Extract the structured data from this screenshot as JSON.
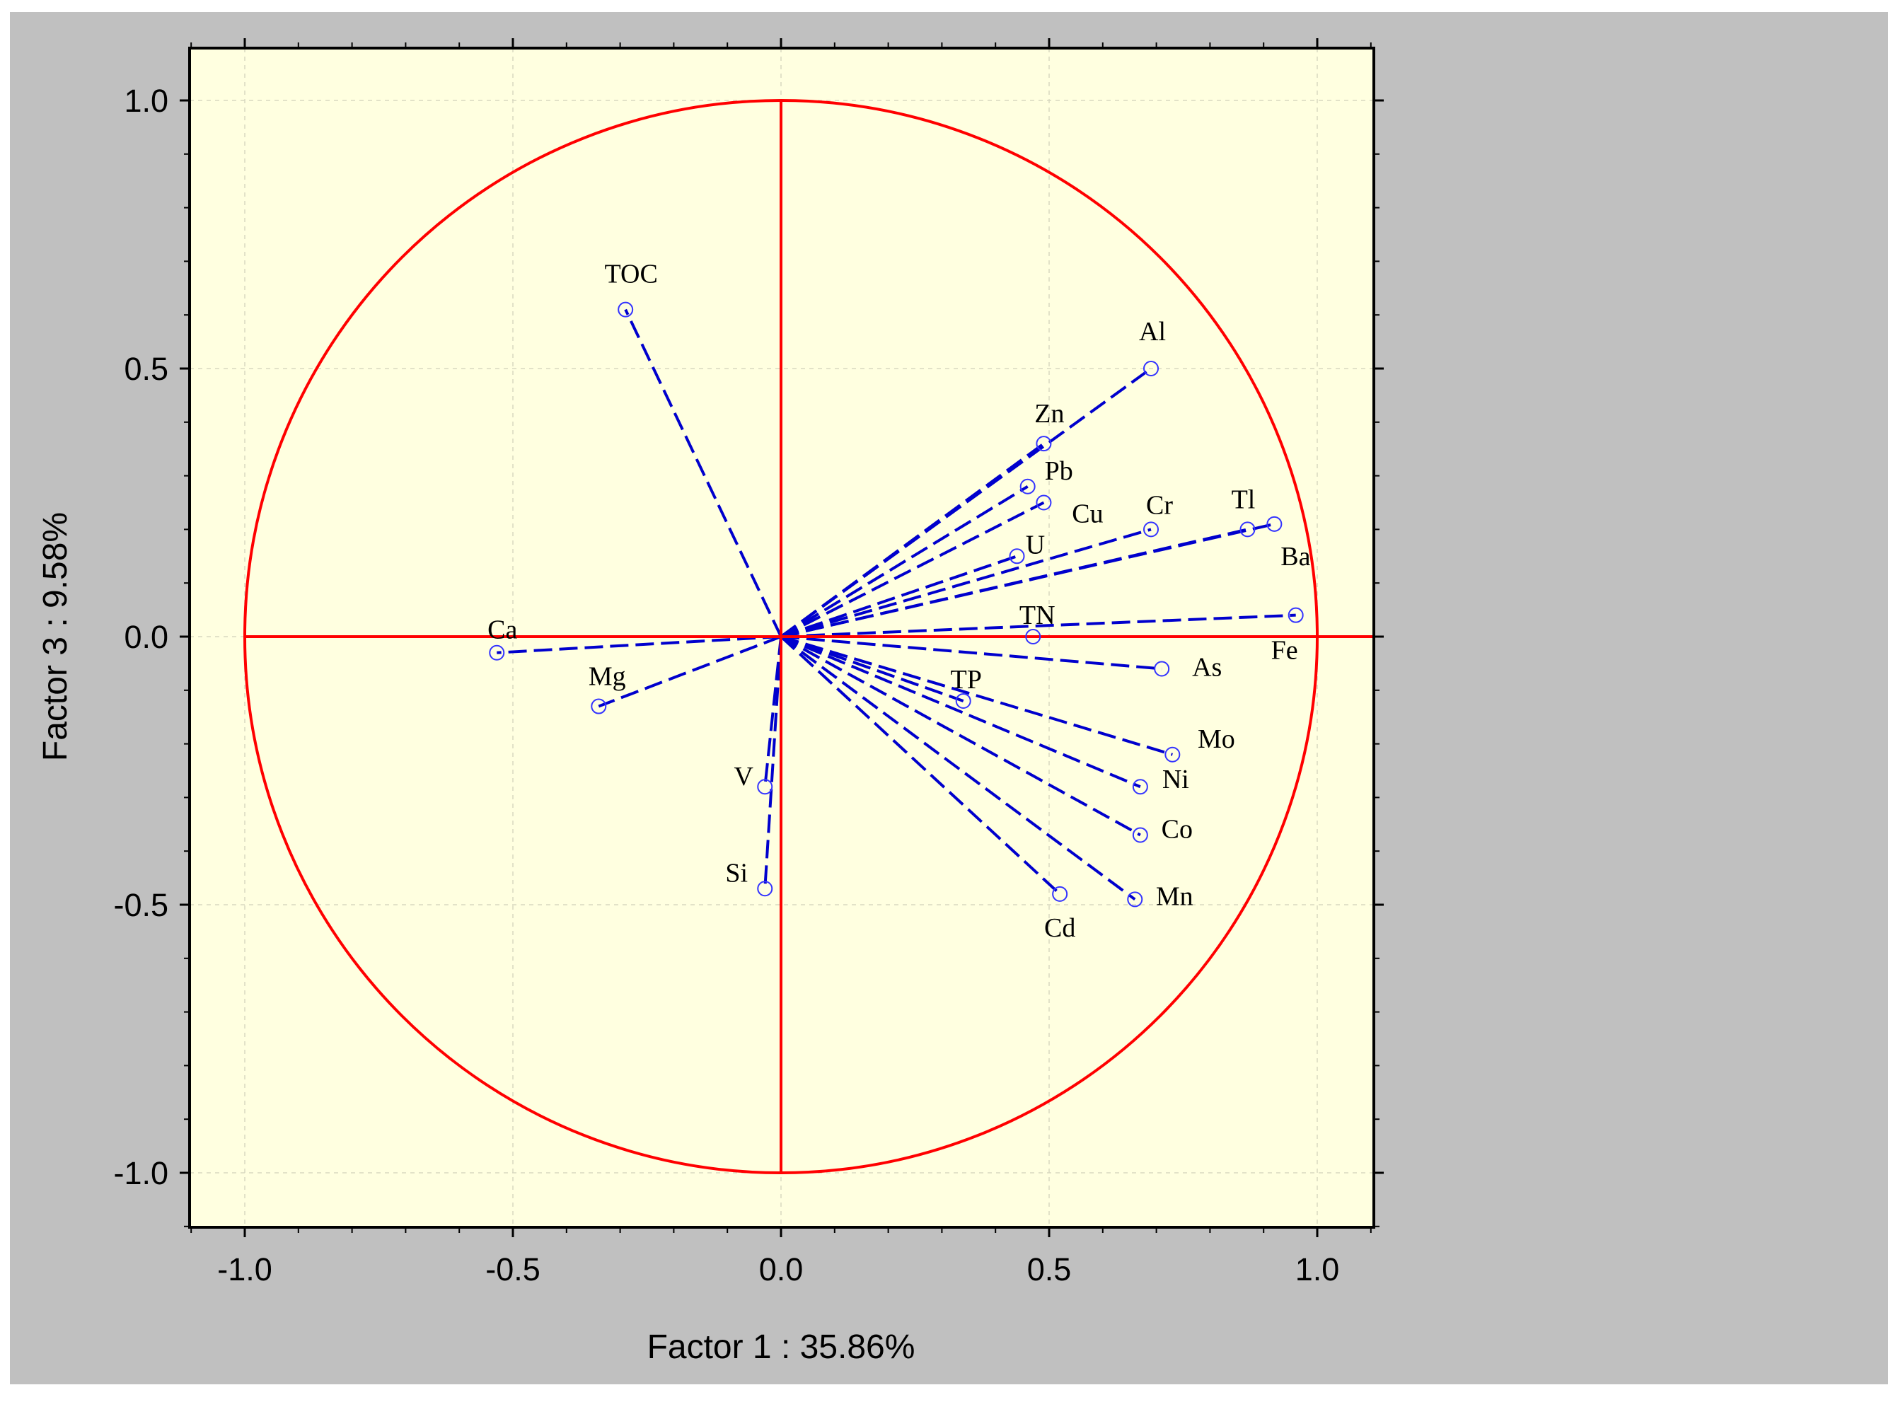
{
  "chart_data": {
    "type": "scatter",
    "subtype": "pca-correlation-circle",
    "title": "",
    "xlabel": "Factor 1 : 35.86%",
    "ylabel": "Factor 3 :  9.58%",
    "xlim": [
      -1.1,
      1.1
    ],
    "ylim": [
      -1.1,
      1.1
    ],
    "xticks": [
      -1.0,
      -0.5,
      0.0,
      0.5,
      1.0
    ],
    "yticks": [
      -1.0,
      -0.5,
      0.0,
      0.5,
      1.0
    ],
    "xtick_labels": [
      "-1.0",
      "-0.5",
      "0.0",
      "0.5",
      "1.0"
    ],
    "ytick_labels": [
      "-1.0",
      "-0.5",
      "0.0",
      "0.5",
      "1.0"
    ],
    "grid": true,
    "unit_circle": true,
    "points": [
      {
        "name": "TOC",
        "x": -0.29,
        "y": 0.61
      },
      {
        "name": "Al",
        "x": 0.69,
        "y": 0.5
      },
      {
        "name": "Zn",
        "x": 0.49,
        "y": 0.36
      },
      {
        "name": "Pb",
        "x": 0.46,
        "y": 0.28
      },
      {
        "name": "Cu",
        "x": 0.49,
        "y": 0.25
      },
      {
        "name": "U",
        "x": 0.44,
        "y": 0.15
      },
      {
        "name": "Cr",
        "x": 0.69,
        "y": 0.2
      },
      {
        "name": "Tl",
        "x": 0.87,
        "y": 0.2
      },
      {
        "name": "Ba",
        "x": 0.92,
        "y": 0.21
      },
      {
        "name": "Fe",
        "x": 0.96,
        "y": 0.04
      },
      {
        "name": "TN",
        "x": 0.47,
        "y": 0.0
      },
      {
        "name": "As",
        "x": 0.71,
        "y": -0.06
      },
      {
        "name": "TP",
        "x": 0.34,
        "y": -0.12
      },
      {
        "name": "Mo",
        "x": 0.73,
        "y": -0.22
      },
      {
        "name": "Ni",
        "x": 0.67,
        "y": -0.28
      },
      {
        "name": "Co",
        "x": 0.67,
        "y": -0.37
      },
      {
        "name": "Mn",
        "x": 0.66,
        "y": -0.49
      },
      {
        "name": "Cd",
        "x": 0.52,
        "y": -0.48
      },
      {
        "name": "Ca",
        "x": -0.53,
        "y": -0.03
      },
      {
        "name": "Mg",
        "x": -0.34,
        "y": -0.13
      },
      {
        "name": "V",
        "x": -0.03,
        "y": -0.28
      },
      {
        "name": "Si",
        "x": -0.03,
        "y": -0.47
      }
    ],
    "colors": {
      "frame": "#c0c0c0",
      "plot_bg": "#ffffe0",
      "circle": "#ff0000",
      "vectors": "#0000cd",
      "markers": "#3333ff"
    }
  }
}
